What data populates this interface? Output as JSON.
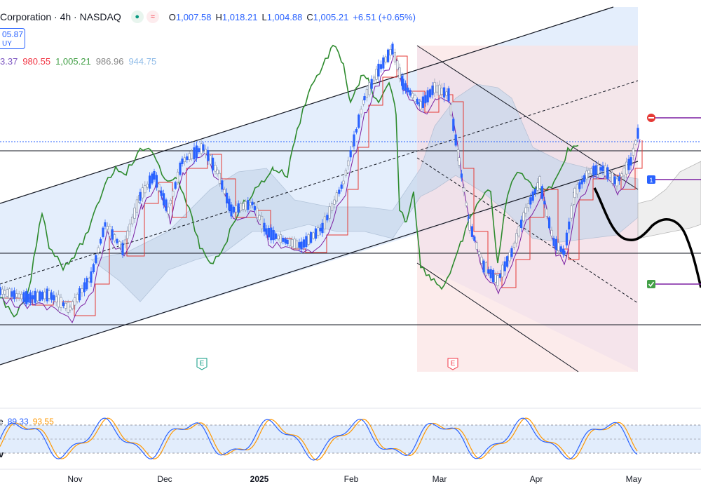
{
  "header": {
    "symbol_text": "Corporation · 4h · NASDAQ",
    "status_green": "●",
    "status_red": "≈",
    "open_label": "O",
    "open": "1,007.58",
    "high_label": "H",
    "high": "1,018.21",
    "low_label": "L",
    "low": "1,004.88",
    "close_label": "C",
    "close": "1,005.21",
    "change": "+6.51 (+0.65%)"
  },
  "price_box": {
    "line1": "05.87",
    "line2": "UY"
  },
  "indicator_values": [
    "3.37",
    "980.55",
    "1,005.21",
    "986.96",
    "944.75"
  ],
  "stoch": {
    "label": "e",
    "k": "89.33",
    "d": "93.55",
    "pane_label": "v"
  },
  "x_axis": [
    {
      "label": "Nov",
      "bold": false
    },
    {
      "label": "Dec",
      "bold": false
    },
    {
      "label": "2025",
      "bold": true
    },
    {
      "label": "Feb",
      "bold": false
    },
    {
      "label": "Mar",
      "bold": false
    },
    {
      "label": "Apr",
      "bold": false
    },
    {
      "label": "May",
      "bold": false
    }
  ],
  "event_badges": [
    "E",
    "E"
  ],
  "colors": {
    "candle_up": "#2962ff",
    "candle_down": "#2962ff",
    "lagging": "#2e8b2e",
    "base_line": "#e53935",
    "conversion": "#7b1fa2",
    "channel_fill": "#dbe8fb",
    "down_channel_fill": "#fbe3e3",
    "stoch_k": "#2962ff",
    "stoch_d": "#ff9800"
  }
}
